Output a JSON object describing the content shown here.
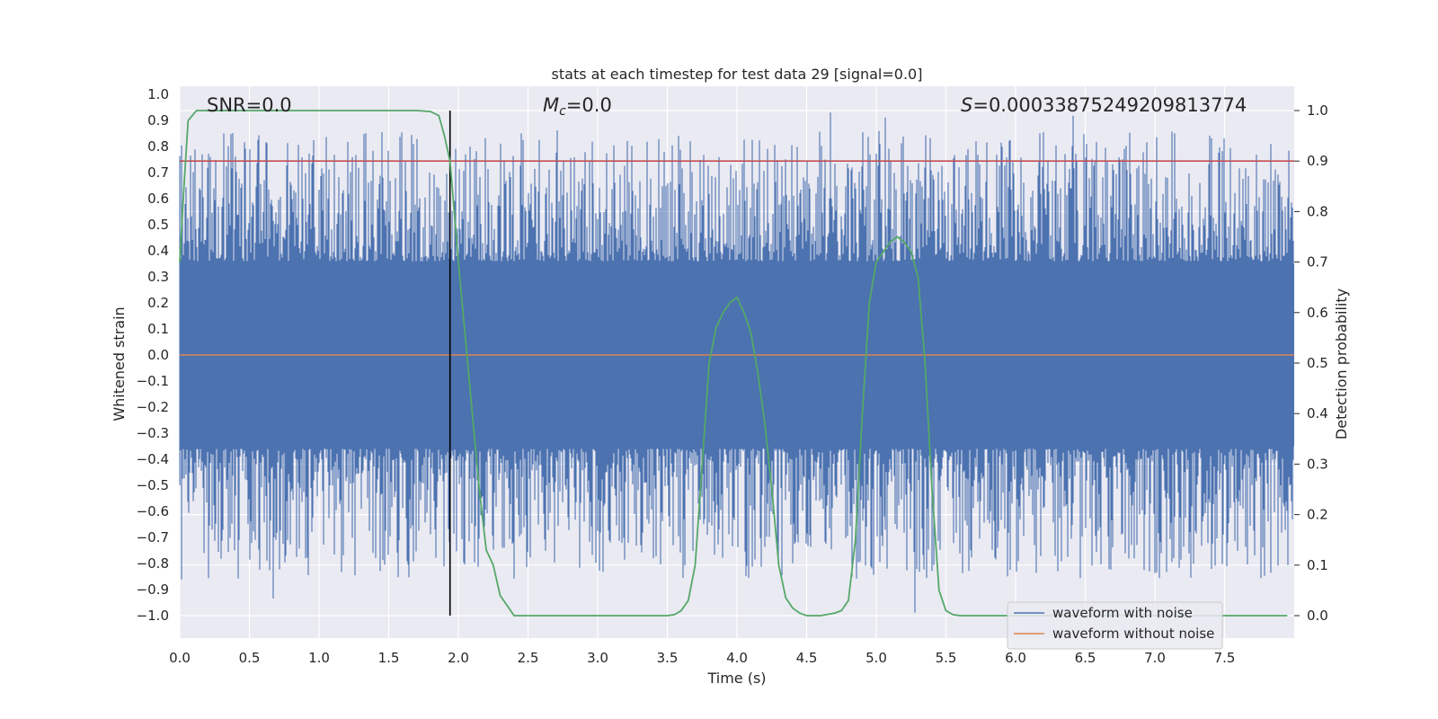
{
  "chart_data": {
    "type": "line",
    "title": "stats at each timestep for test data 29 [signal=0.0]",
    "xlabel": "Time (s)",
    "ylabel_left": "Whitened strain",
    "ylabel_right": "Detection probability",
    "xlim": [
      0.0,
      8.0
    ],
    "ylim_left": [
      -1.09,
      1.05
    ],
    "ylim_right": [
      -0.05,
      1.05
    ],
    "x_ticks": [
      "0.0",
      "0.5",
      "1.0",
      "1.5",
      "2.0",
      "2.5",
      "3.0",
      "3.5",
      "4.0",
      "4.5",
      "5.0",
      "5.5",
      "6.0",
      "6.5",
      "7.0",
      "7.5"
    ],
    "y_ticks_left": [
      "1.0",
      "0.9",
      "0.8",
      "0.7",
      "0.6",
      "0.5",
      "0.4",
      "0.3",
      "0.2",
      "0.1",
      "0.0",
      "−0.1",
      "−0.2",
      "−0.3",
      "−0.4",
      "−0.5",
      "−0.6",
      "−0.7",
      "−0.8",
      "−0.9",
      "−1.0"
    ],
    "y_ticks_right": [
      "1.0",
      "0.9",
      "0.8",
      "0.7",
      "0.6",
      "0.5",
      "0.4",
      "0.3",
      "0.2",
      "0.1",
      "0.0"
    ],
    "grid": true,
    "legend_position": "lower-right",
    "annotations": {
      "snr_label": "SNR=0.0",
      "mc_symbol": "M",
      "mc_sub": "c",
      "mc_value": "=0.0",
      "s_symbol": "S",
      "s_value": "=0.00033875249209813774"
    },
    "threshold_probability": 0.9,
    "vertical_marker_time": 1.94,
    "series": [
      {
        "name": "waveform with noise",
        "color": "#4c72b0",
        "description_values": "dense noise oscillating roughly between -1.0 and 0.93"
      },
      {
        "name": "waveform without noise",
        "color": "#dd8452",
        "values_constant": 0.0
      },
      {
        "name": "",
        "color": "#55a868",
        "axis": "right",
        "x": [
          0.0,
          0.03,
          0.06,
          0.12,
          0.25,
          0.5,
          1.0,
          1.5,
          1.7,
          1.8,
          1.86,
          1.9,
          1.94,
          1.97,
          2.0,
          2.05,
          2.1,
          2.15,
          2.2,
          2.25,
          2.3,
          2.35,
          2.4,
          2.5,
          3.0,
          3.5,
          3.55,
          3.6,
          3.65,
          3.7,
          3.75,
          3.8,
          3.85,
          3.9,
          3.95,
          4.0,
          4.05,
          4.1,
          4.15,
          4.2,
          4.25,
          4.3,
          4.35,
          4.4,
          4.45,
          4.5,
          4.6,
          4.7,
          4.75,
          4.8,
          4.85,
          4.9,
          4.95,
          5.0,
          5.05,
          5.1,
          5.15,
          5.2,
          5.25,
          5.3,
          5.35,
          5.4,
          5.45,
          5.5,
          5.55,
          5.6,
          6.0,
          7.0,
          7.95
        ],
        "values": [
          0.7,
          0.85,
          0.98,
          1.0,
          1.0,
          1.0,
          1.0,
          1.0,
          1.0,
          0.998,
          0.99,
          0.95,
          0.9,
          0.8,
          0.7,
          0.55,
          0.4,
          0.25,
          0.13,
          0.1,
          0.04,
          0.02,
          0.0,
          0.0,
          0.0,
          0.0,
          0.002,
          0.01,
          0.03,
          0.1,
          0.3,
          0.5,
          0.57,
          0.6,
          0.62,
          0.63,
          0.6,
          0.56,
          0.48,
          0.38,
          0.25,
          0.1,
          0.035,
          0.015,
          0.005,
          0.0,
          0.0,
          0.005,
          0.01,
          0.03,
          0.15,
          0.4,
          0.62,
          0.7,
          0.72,
          0.74,
          0.75,
          0.74,
          0.72,
          0.67,
          0.5,
          0.25,
          0.05,
          0.01,
          0.002,
          0.0,
          0.0,
          0.0,
          0.0
        ]
      }
    ]
  }
}
